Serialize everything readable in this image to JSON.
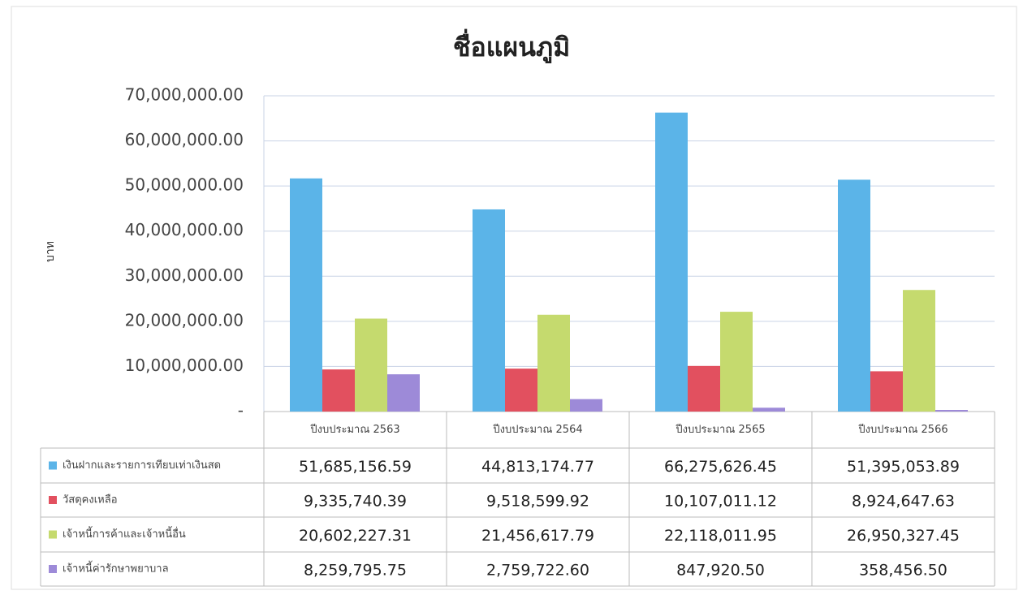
{
  "chart_data": {
    "type": "bar",
    "title": "ชื่อแผนภูมิ",
    "y_label": "บาท",
    "categories": [
      "ปีงบประมาณ 2563",
      "ปีงบประมาณ 2564",
      "ปีงบประมาณ 2565",
      "ปีงบประมาณ 2566"
    ],
    "series": [
      {
        "name": "เงินฝากและรายการเทียบเท่าเงินสด",
        "color": "#5bb4e8",
        "values": [
          51685156.59,
          44813174.77,
          66275626.45,
          51395053.89
        ],
        "value_labels": [
          "51,685,156.59",
          "44,813,174.77",
          "66,275,626.45",
          "51,395,053.89"
        ]
      },
      {
        "name": "วัสดุคงเหลือ",
        "color": "#e2505f",
        "values": [
          9335740.39,
          9518599.92,
          10107011.12,
          8924647.63
        ],
        "value_labels": [
          "9,335,740.39",
          "9,518,599.92",
          "10,107,011.12",
          "8,924,647.63"
        ]
      },
      {
        "name": "เจ้าหนี้การค้าและเจ้าหนี้อื่น",
        "color": "#c5da6e",
        "values": [
          20602227.31,
          21456617.79,
          22118011.95,
          26950327.45
        ],
        "value_labels": [
          "20,602,227.31",
          "21,456,617.79",
          "22,118,011.95",
          "26,950,327.45"
        ]
      },
      {
        "name": "เจ้าหนี้ค่ารักษาพยาบาล",
        "color": "#9d8ad8",
        "values": [
          8259795.75,
          2759722.6,
          847920.5,
          358456.5
        ],
        "value_labels": [
          "8,259,795.75",
          "2,759,722.60",
          "847,920.50",
          "358,456.50"
        ]
      }
    ],
    "ylim": [
      0,
      70000000
    ],
    "yticks": [
      {
        "value": 0,
        "label": "-"
      },
      {
        "value": 10000000,
        "label": "10,000,000.00"
      },
      {
        "value": 20000000,
        "label": "20,000,000.00"
      },
      {
        "value": 30000000,
        "label": "30,000,000.00"
      },
      {
        "value": 40000000,
        "label": "40,000,000.00"
      },
      {
        "value": 50000000,
        "label": "50,000,000.00"
      },
      {
        "value": 60000000,
        "label": "60,000,000.00"
      },
      {
        "value": 70000000,
        "label": "70,000,000.00"
      }
    ],
    "grid": true
  }
}
